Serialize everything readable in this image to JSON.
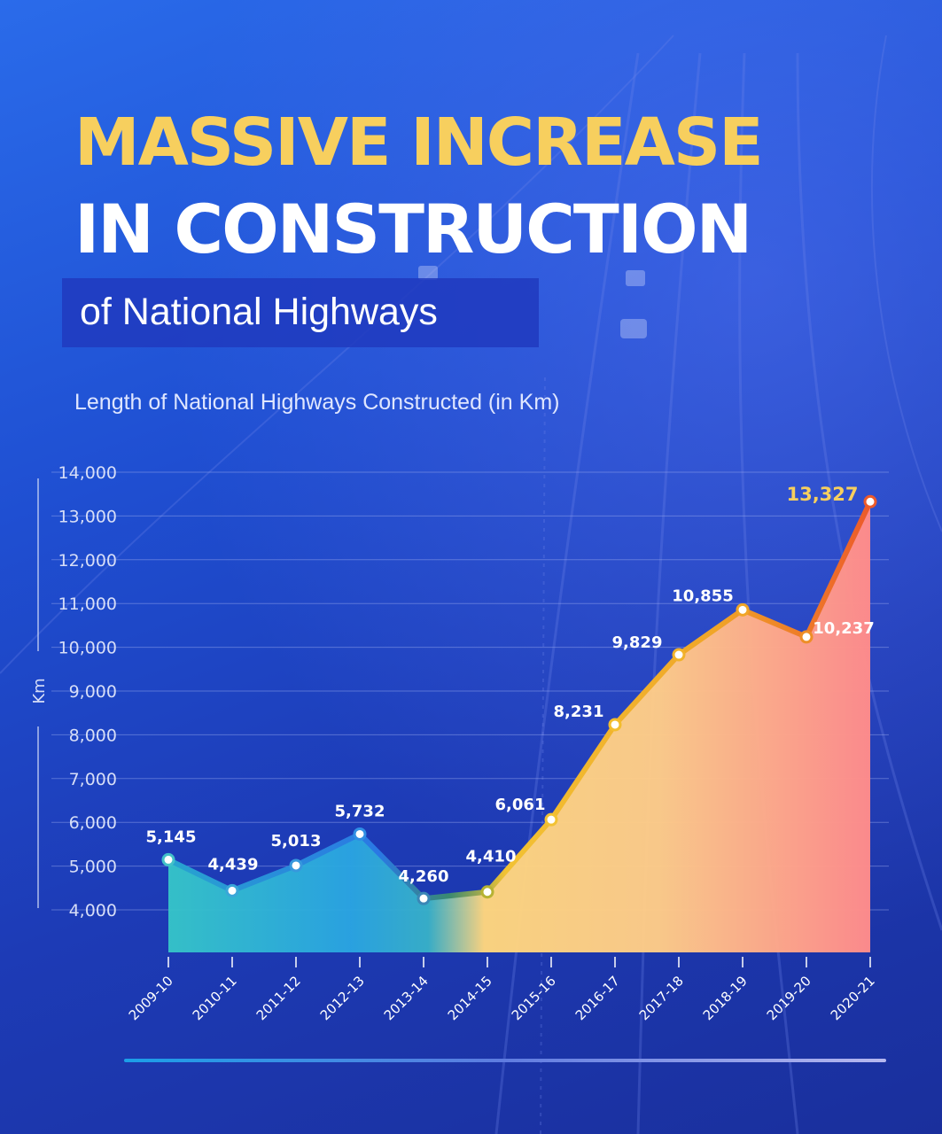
{
  "header": {
    "title_line1": "MASSIVE INCREASE",
    "title_line2": "IN CONSTRUCTION",
    "subtitle": "of National Highways",
    "chart_caption": "Length of National Highways Constructed (in Km)"
  },
  "colors": {
    "title_accent": "#f7cf5e",
    "background": "#1f49c9",
    "line_early": "#2b84e6",
    "line_late": "#f0a020",
    "line_peak": "#ef5a2a"
  },
  "chart_data": {
    "type": "area",
    "title": "Length of National Highways Constructed (in Km)",
    "xlabel": "",
    "ylabel": "Km",
    "ylim": [
      3000,
      14000
    ],
    "y_ticks": [
      14000,
      13000,
      12000,
      11000,
      10000,
      9000,
      8000,
      7000,
      6000,
      5000,
      4000
    ],
    "y_tick_labels": [
      "14,000",
      "13,000",
      "12,000",
      "11,000",
      "10,000",
      "9,000",
      "8,000",
      "7,000",
      "6,000",
      "5,000",
      "4,000"
    ],
    "grid": true,
    "categories": [
      "2009-10",
      "2010-11",
      "2011-12",
      "2012-13",
      "2013-14",
      "2014-15",
      "2015-16",
      "2016-17",
      "2017-18",
      "2018-19",
      "2019-20",
      "2020-21"
    ],
    "values": [
      5145,
      4439,
      5013,
      5732,
      4260,
      4410,
      6061,
      8231,
      9829,
      10855,
      10237,
      13327
    ],
    "value_labels": [
      "5,145",
      "4,439",
      "5,013",
      "5,732",
      "4,260",
      "4,410",
      "6,061",
      "8,231",
      "9,829",
      "10,855",
      "10,237",
      "13,327"
    ],
    "highlight_last": true
  }
}
